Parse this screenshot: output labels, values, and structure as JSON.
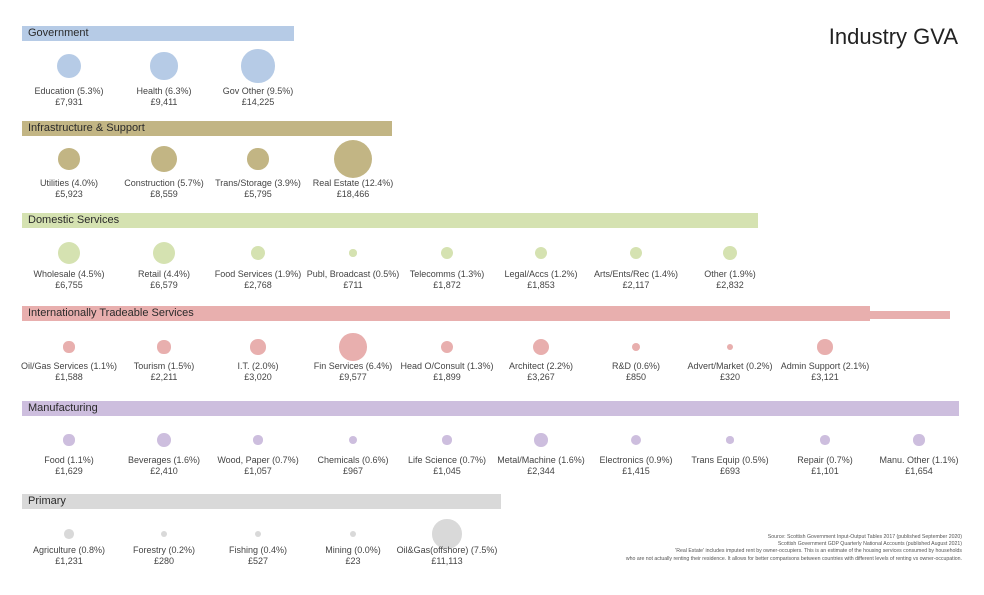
{
  "title": "Industry GVA",
  "colors": {
    "government": "#b6cbe6",
    "infrastructure": "#c2b584",
    "domestic": "#d5e2b1",
    "trade": "#e8afae",
    "manufacturing": "#cdbede",
    "primary": "#d9d9d9"
  },
  "chart_data": {
    "type": "bubble",
    "title": "Industry GVA",
    "value_unit": "£",
    "groups": [
      {
        "name": "Government",
        "color_key": "government",
        "items": [
          {
            "label": "Education (5.3%)",
            "share": 5.3,
            "value": "£7,931",
            "gva": 7931
          },
          {
            "label": "Health (6.3%)",
            "share": 6.3,
            "value": "£9,411",
            "gva": 9411
          },
          {
            "label": "Gov Other (9.5%)",
            "share": 9.5,
            "value": "£14,225",
            "gva": 14225
          }
        ]
      },
      {
        "name": "Infrastructure & Support",
        "color_key": "infrastructure",
        "items": [
          {
            "label": "Utilities (4.0%)",
            "share": 4.0,
            "value": "£5,923",
            "gva": 5923
          },
          {
            "label": "Construction (5.7%)",
            "share": 5.7,
            "value": "£8,559",
            "gva": 8559
          },
          {
            "label": "Trans/Storage (3.9%)",
            "share": 3.9,
            "value": "£5,795",
            "gva": 5795
          },
          {
            "label": "Real Estate (12.4%)",
            "share": 12.4,
            "value": "£18,466",
            "gva": 18466
          }
        ]
      },
      {
        "name": "Domestic Services",
        "color_key": "domestic",
        "items": [
          {
            "label": "Wholesale (4.5%)",
            "share": 4.5,
            "value": "£6,755",
            "gva": 6755
          },
          {
            "label": "Retail (4.4%)",
            "share": 4.4,
            "value": "£6,579",
            "gva": 6579
          },
          {
            "label": "Food Services (1.9%)",
            "share": 1.9,
            "value": "£2,768",
            "gva": 2768
          },
          {
            "label": "Publ, Broadcast (0.5%)",
            "share": 0.5,
            "value": "£711",
            "gva": 711
          },
          {
            "label": "Telecomms (1.3%)",
            "share": 1.3,
            "value": "£1,872",
            "gva": 1872
          },
          {
            "label": "Legal/Accs (1.2%)",
            "share": 1.2,
            "value": "£1,853",
            "gva": 1853
          },
          {
            "label": "Arts/Ents/Rec (1.4%)",
            "share": 1.4,
            "value": "£2,117",
            "gva": 2117
          },
          {
            "label": "Other (1.9%)",
            "share": 1.9,
            "value": "£2,832",
            "gva": 2832
          }
        ]
      },
      {
        "name": "Internationally Tradeable Services",
        "color_key": "trade",
        "items": [
          {
            "label": "Oil/Gas Services (1.1%)",
            "share": 1.1,
            "value": "£1,588",
            "gva": 1588
          },
          {
            "label": "Tourism (1.5%)",
            "share": 1.5,
            "value": "£2,211",
            "gva": 2211
          },
          {
            "label": "I.T. (2.0%)",
            "share": 2.0,
            "value": "£3,020",
            "gva": 3020
          },
          {
            "label": "Fin Services (6.4%)",
            "share": 6.4,
            "value": "£9,577",
            "gva": 9577
          },
          {
            "label": "Head O/Consult (1.3%)",
            "share": 1.3,
            "value": "£1,899",
            "gva": 1899
          },
          {
            "label": "Architect (2.2%)",
            "share": 2.2,
            "value": "£3,267",
            "gva": 3267
          },
          {
            "label": "R&D (0.6%)",
            "share": 0.6,
            "value": "£850",
            "gva": 850
          },
          {
            "label": "Advert/Market (0.2%)",
            "share": 0.2,
            "value": "£320",
            "gva": 320
          },
          {
            "label": "Admin Support (2.1%)",
            "share": 2.1,
            "value": "£3,121",
            "gva": 3121
          }
        ]
      },
      {
        "name": "Manufacturing",
        "color_key": "manufacturing",
        "items": [
          {
            "label": "Food (1.1%)",
            "share": 1.1,
            "value": "£1,629",
            "gva": 1629
          },
          {
            "label": "Beverages (1.6%)",
            "share": 1.6,
            "value": "£2,410",
            "gva": 2410
          },
          {
            "label": "Wood, Paper (0.7%)",
            "share": 0.7,
            "value": "£1,057",
            "gva": 1057
          },
          {
            "label": "Chemicals (0.6%)",
            "share": 0.6,
            "value": "£967",
            "gva": 967
          },
          {
            "label": "Life Science (0.7%)",
            "share": 0.7,
            "value": "£1,045",
            "gva": 1045
          },
          {
            "label": "Metal/Machine (1.6%)",
            "share": 1.6,
            "value": "£2,344",
            "gva": 2344
          },
          {
            "label": "Electronics (0.9%)",
            "share": 0.9,
            "value": "£1,415",
            "gva": 1415
          },
          {
            "label": "Trans Equip (0.5%)",
            "share": 0.5,
            "value": "£693",
            "gva": 693
          },
          {
            "label": "Repair (0.7%)",
            "share": 0.7,
            "value": "£1,101",
            "gva": 1101
          },
          {
            "label": "Manu. Other (1.1%)",
            "share": 1.1,
            "value": "£1,654",
            "gva": 1654
          }
        ]
      },
      {
        "name": "Primary",
        "color_key": "primary",
        "items": [
          {
            "label": "Agriculture (0.8%)",
            "share": 0.8,
            "value": "£1,231",
            "gva": 1231
          },
          {
            "label": "Forestry (0.2%)",
            "share": 0.2,
            "value": "£280",
            "gva": 280
          },
          {
            "label": "Fishing (0.4%)",
            "share": 0.4,
            "value": "£527",
            "gva": 527
          },
          {
            "label": "Mining (0.0%)",
            "share": 0.0,
            "value": "£23",
            "gva": 23
          },
          {
            "label": "Oil&Gas(offshore) (7.5%)",
            "share": 7.5,
            "value": "£11,113",
            "gva": 11113
          }
        ]
      }
    ]
  },
  "source_note": [
    "Source: Scottish Government Input-Output Tables 2017 (published September 2020)",
    "Scottish Government GDP Quarterly National Accounts (published August 2021)",
    "'Real Estate' includes imputed rent by owner-occupiers. This is an estimate of the housing services consumed by households",
    "who are not actually renting their residence. It allows for better comparisons between countries with different levels of renting vs owner-occupation."
  ]
}
